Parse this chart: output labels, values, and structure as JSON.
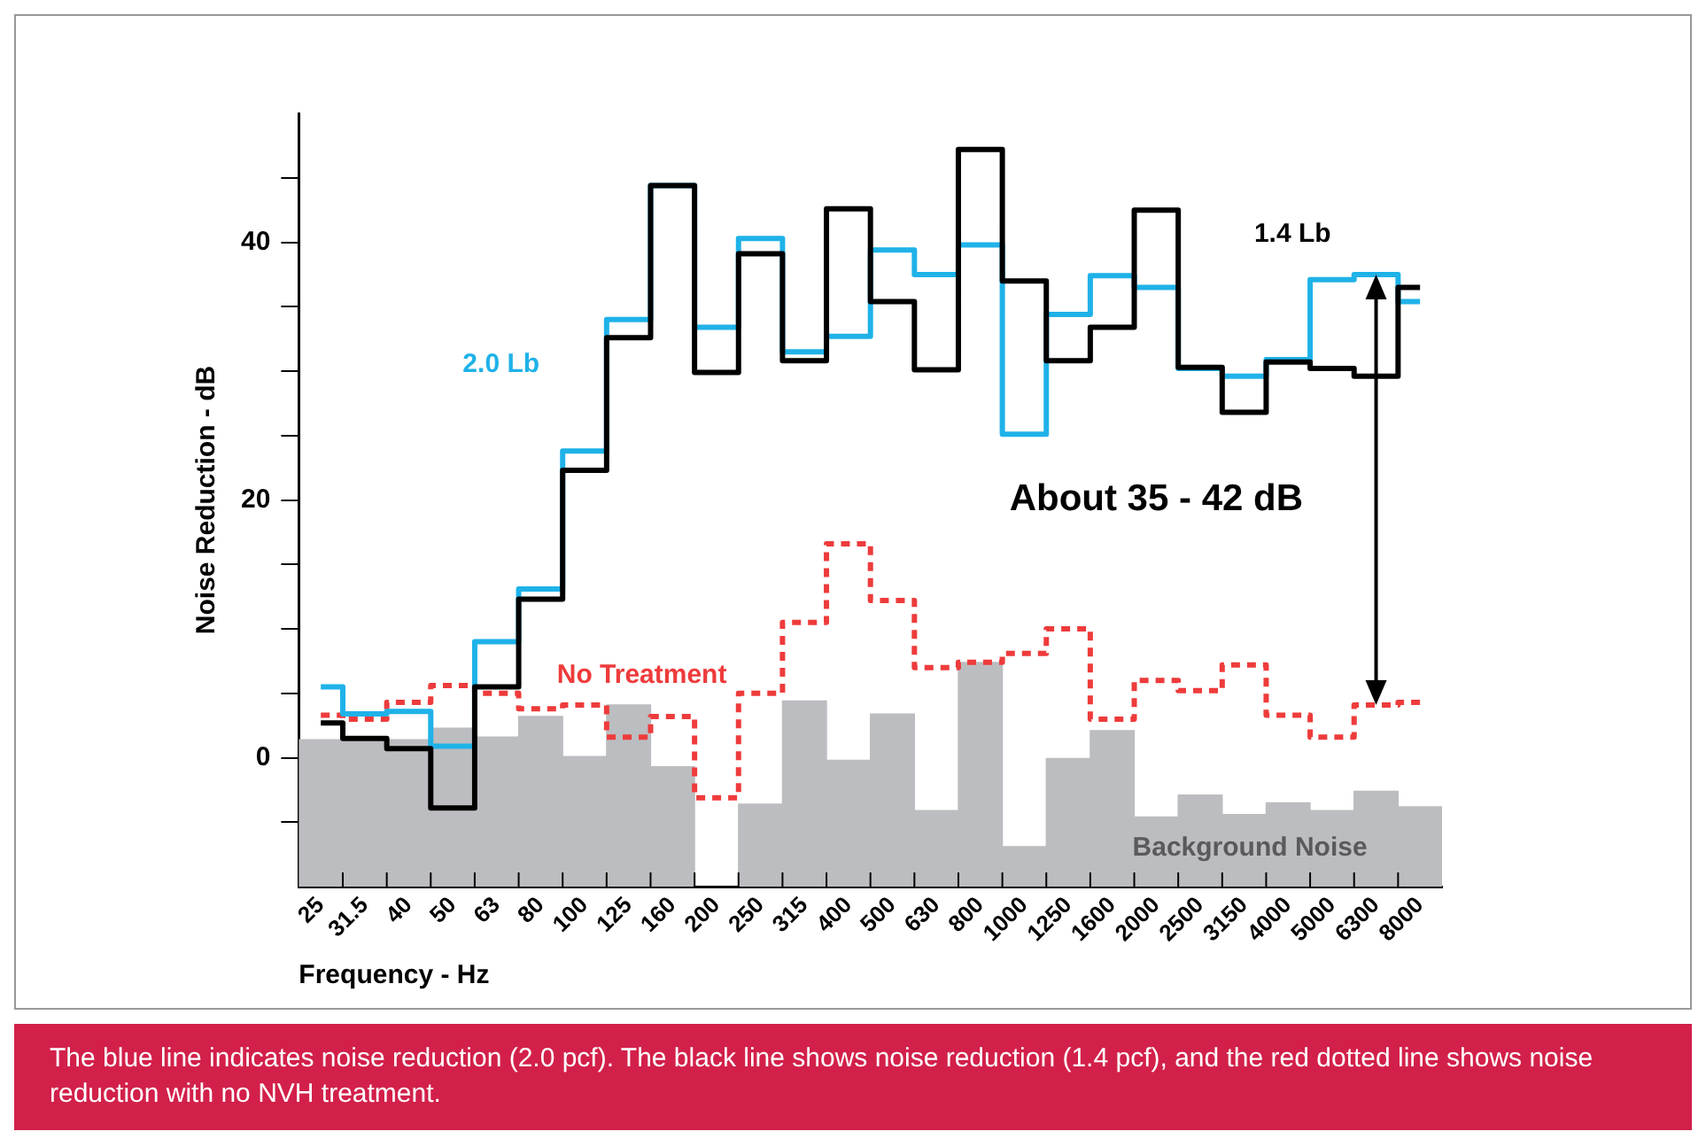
{
  "chart_data": {
    "type": "step",
    "xlabel": "Frequency - Hz",
    "ylabel": "Noise Reduction - dB",
    "categories": [
      "25",
      "31.5",
      "40",
      "50",
      "63",
      "80",
      "100",
      "125",
      "160",
      "200",
      "250",
      "315",
      "400",
      "500",
      "630",
      "800",
      "1000",
      "1250",
      "1600",
      "2000",
      "2500",
      "3150",
      "4000",
      "5000",
      "6300",
      "8000"
    ],
    "series": [
      {
        "name": "Background Noise",
        "type": "bar",
        "color": "#bcbdc0",
        "base": [
          -10,
          -10,
          -10,
          -10,
          -10,
          -10,
          -10,
          -10,
          -10,
          null,
          -10,
          -10,
          -10,
          -10,
          -10,
          -10,
          -10,
          -10,
          -10,
          -10,
          -10,
          -10,
          -10,
          -10,
          -10,
          -10
        ],
        "values": [
          11.4,
          11.3,
          11.4,
          12.3,
          11.6,
          13.2,
          10.1,
          14.1,
          9.3,
          null,
          6.4,
          14.4,
          9.8,
          13.4,
          5.9,
          17.4,
          3.1,
          10.0,
          12.1,
          5.4,
          7.1,
          5.6,
          6.5,
          5.9,
          7.4,
          6.2
        ]
      },
      {
        "name": "No Treatment",
        "color": "#ee3b3b",
        "line_style": "dashed",
        "values": [
          3.3,
          3.0,
          4.3,
          5.6,
          5.0,
          3.8,
          4.1,
          1.6,
          3.2,
          -3.1,
          5.0,
          10.5,
          16.6,
          12.2,
          7.0,
          7.4,
          8.1,
          10.0,
          3.0,
          6.0,
          5.2,
          7.2,
          3.3,
          1.6,
          4.1,
          4.3
        ]
      },
      {
        "name": "2.0 Lb",
        "color": "#1fb2e8",
        "values": [
          5.5,
          3.4,
          3.6,
          0.9,
          9.0,
          13.1,
          23.8,
          34.0,
          44.4,
          33.4,
          40.3,
          31.5,
          32.7,
          39.4,
          37.5,
          39.8,
          25.1,
          34.4,
          37.4,
          36.5,
          30.2,
          29.6,
          30.9,
          37.1,
          37.5,
          35.4
        ]
      },
      {
        "name": "1.4 Lb",
        "color": "#000000",
        "values": [
          2.7,
          1.5,
          0.7,
          -3.9,
          5.5,
          12.3,
          22.3,
          32.6,
          44.4,
          29.9,
          39.1,
          30.8,
          42.6,
          35.4,
          30.1,
          47.2,
          37.0,
          30.8,
          33.4,
          42.5,
          30.3,
          26.8,
          30.7,
          30.2,
          29.6,
          36.5
        ]
      }
    ],
    "ylim": [
      -10,
      50
    ],
    "yticks": [
      {
        "value": -5,
        "label": null
      },
      0,
      {
        "value": 5,
        "label": null
      },
      {
        "value": 10,
        "label": null
      },
      {
        "value": 15,
        "label": null
      },
      20,
      {
        "value": 25,
        "label": null
      },
      {
        "value": 30,
        "label": null
      },
      {
        "value": 35,
        "label": null
      },
      40,
      {
        "value": 45,
        "label": null
      }
    ],
    "grid": false,
    "legend": false,
    "annotations": [
      "About 35 - 42 dB",
      "The blue line indicates noise reduction (2.0 pcf). The black line shows noise reduction (1.4 pcf), and the red dotted line shows noise reduction with no NVH treatment."
    ]
  }
}
